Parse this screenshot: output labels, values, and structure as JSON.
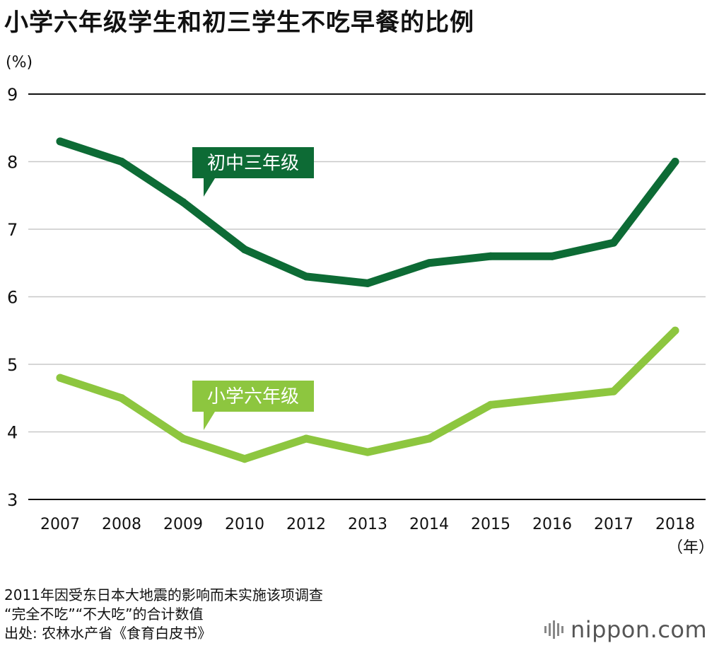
{
  "header": {
    "title": "小学六年级学生和初三学生不吃早餐的比例"
  },
  "axis": {
    "y_unit": "(%)",
    "x_unit": "（年）"
  },
  "chart_data": {
    "type": "line",
    "title": "小学六年级学生和初三学生不吃早餐的比例",
    "xlabel": "（年）",
    "ylabel": "(%)",
    "categories": [
      "2007",
      "2008",
      "2009",
      "2010",
      "2012",
      "2013",
      "2014",
      "2015",
      "2016",
      "2017",
      "2018"
    ],
    "yticks": [
      "3",
      "4",
      "5",
      "6",
      "7",
      "8",
      "9"
    ],
    "ylim": [
      3,
      9
    ],
    "grid": true,
    "series": [
      {
        "name": "初中三年级",
        "color": "#0d6b35",
        "values": [
          8.3,
          8.0,
          7.4,
          6.7,
          6.3,
          6.2,
          6.5,
          6.6,
          6.6,
          6.8,
          8.0
        ]
      },
      {
        "name": "小学六年级",
        "color": "#8dc63f",
        "values": [
          4.8,
          4.5,
          3.9,
          3.6,
          3.9,
          3.7,
          3.9,
          4.4,
          4.5,
          4.6,
          5.5
        ]
      }
    ]
  },
  "notes": [
    "2011年因受东日本大地震的影响而未实施该项调查",
    "“完全不吃”“不大吃”的合计数值",
    "出处: 农林水产省《食育白皮书》"
  ],
  "brand": {
    "text": "nippon.com",
    "logo_icon": "nippon-logo-icon",
    "text_color": "#555555"
  }
}
